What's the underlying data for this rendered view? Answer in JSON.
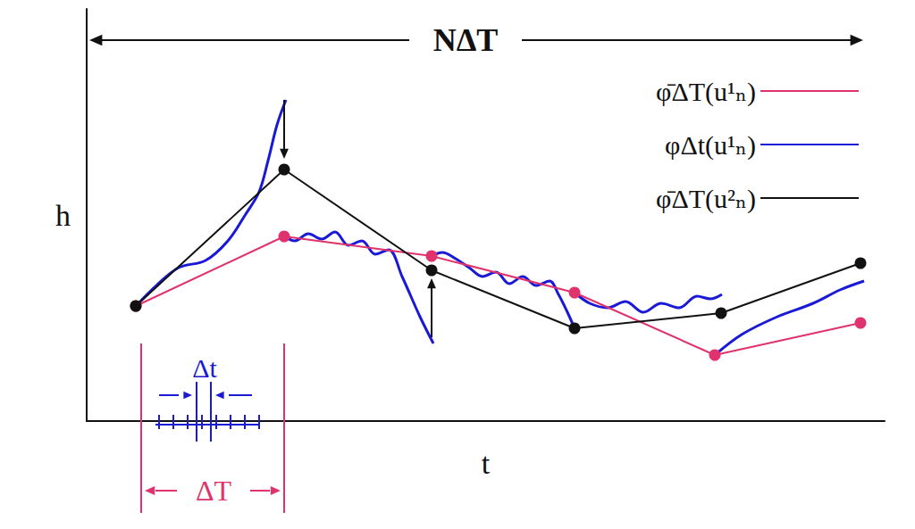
{
  "chart_data": {
    "type": "line",
    "x_label": "t",
    "y_label": "h",
    "annotations": [
      "NΔT",
      "ΔT",
      "Δt"
    ],
    "xlim": [
      0,
      893
    ],
    "ylim": [
      0,
      462
    ],
    "tick_labels": false,
    "grid": false,
    "legend": "upper right",
    "series": [
      {
        "name": "φ̄ΔT(u¹ₙ)",
        "color": "#e0336e",
        "marker": "circle",
        "line_style": "solid",
        "x": [
          55,
          221,
          386,
          546,
          703,
          866
        ],
        "values": [
          129,
          207,
          185,
          144,
          74,
          110
        ]
      },
      {
        "name": "φΔt(u¹ₙ)",
        "color": "#1a1ad6",
        "marker": "none",
        "line_style": "solid",
        "x": [
          55,
          78,
          103,
          133,
          158,
          178,
          193,
          203,
          213,
          223,
          null,
          221,
          233,
          248,
          263,
          278,
          293,
          308,
          323,
          338,
          353,
          373,
          388,
          null,
          386,
          398,
          413,
          428,
          443,
          458,
          473,
          488,
          503,
          518,
          528,
          538,
          546,
          null,
          546,
          563,
          583,
          603,
          623,
          643,
          663,
          683,
          698,
          711,
          null,
          703,
          733,
          773,
          813,
          843,
          870
        ],
        "values": [
          129,
          152,
          172,
          180,
          202,
          232,
          257,
          292,
          332,
          360,
          null,
          207,
          202,
          210,
          204,
          212,
          197,
          202,
          187,
          192,
          162,
          117,
          87,
          null,
          185,
          189,
          182,
          172,
          162,
          167,
          154,
          162,
          152,
          157,
          142,
          122,
          104,
          null,
          144,
          132,
          127,
          134,
          122,
          132,
          127,
          140,
          137,
          142,
          null,
          74,
          97,
          117,
          132,
          147,
          157
        ]
      },
      {
        "name": "φ̄ΔT(u²ₙ)",
        "color": "#111111",
        "marker": "circle",
        "line_style": "solid",
        "x": [
          55,
          221,
          386,
          546,
          710,
          866
        ],
        "values": [
          129,
          282,
          169,
          104,
          121,
          177
        ]
      }
    ]
  }
}
